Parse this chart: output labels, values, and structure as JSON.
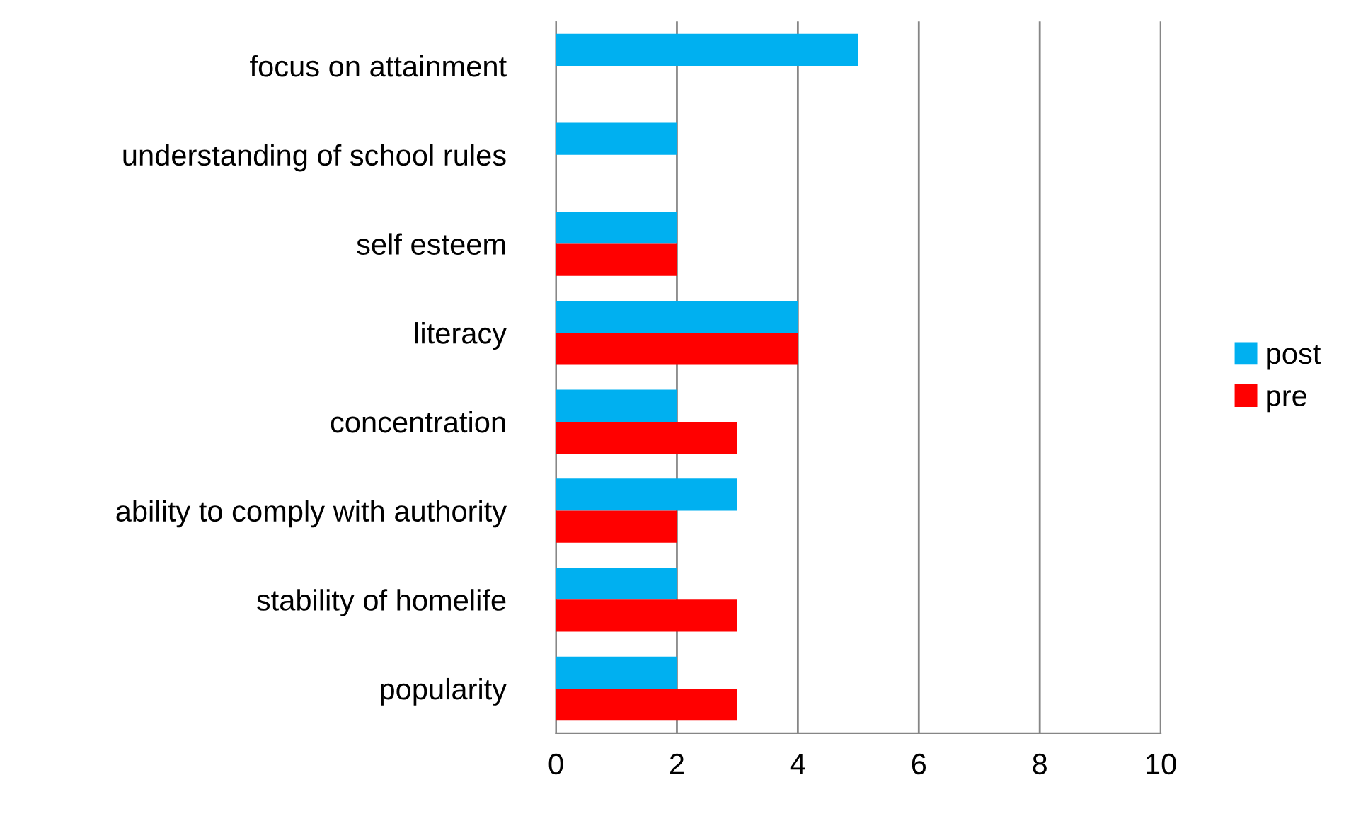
{
  "chart_data": {
    "type": "bar",
    "orientation": "horizontal",
    "categories": [
      "focus on attainment",
      "understanding of school rules",
      "self esteem",
      "literacy",
      "concentration",
      "ability to comply with authority",
      "stability of homelife",
      "popularity"
    ],
    "series": [
      {
        "name": "post",
        "color": "#00b0f0",
        "values": [
          5,
          2,
          2,
          4,
          2,
          3,
          2,
          2
        ]
      },
      {
        "name": "pre",
        "color": "#ff0000",
        "values": [
          0,
          0,
          2,
          4,
          3,
          2,
          3,
          3
        ]
      }
    ],
    "xlim": [
      0,
      10
    ],
    "xticks": [
      0,
      2,
      4,
      6,
      8,
      10
    ],
    "grid": "x",
    "legend": "right"
  }
}
